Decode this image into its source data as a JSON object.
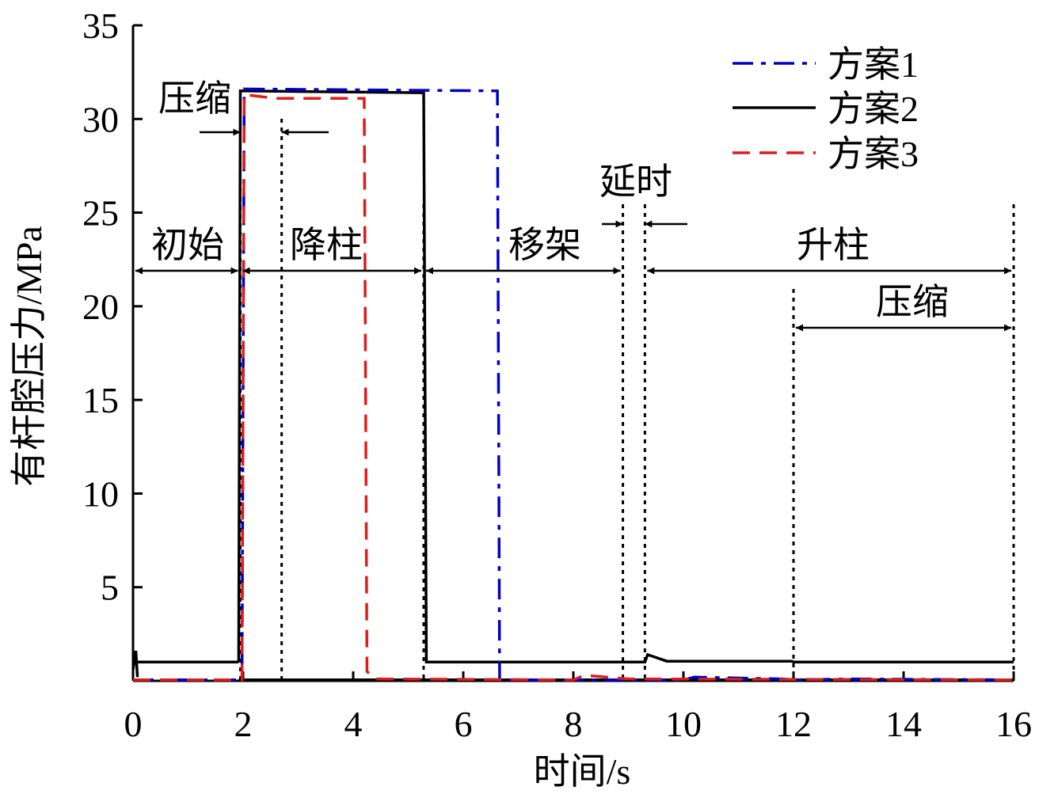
{
  "chart_data": {
    "type": "line",
    "xlabel": "时间/s",
    "ylabel": "有杆腔压力/MPa",
    "xlim": [
      0,
      16
    ],
    "ylim": [
      0,
      35
    ],
    "xticks": [
      0,
      2,
      4,
      6,
      8,
      10,
      12,
      14,
      16
    ],
    "yticks": [
      5,
      10,
      15,
      20,
      25,
      30,
      35
    ],
    "grid": false,
    "legend": "top-right",
    "series": [
      {
        "name": "方案1",
        "color": "#0000cc",
        "dash": "dashdot",
        "points": [
          [
            0,
            0.05
          ],
          [
            1.98,
            0.05
          ],
          [
            2.02,
            31.6
          ],
          [
            6.62,
            31.5
          ],
          [
            6.66,
            0.05
          ],
          [
            10.0,
            0.05
          ],
          [
            10.2,
            0.2
          ],
          [
            11.8,
            0.1
          ],
          [
            12.0,
            0.05
          ],
          [
            13.0,
            0.1
          ],
          [
            16,
            0.05
          ]
        ]
      },
      {
        "name": "方案2",
        "color": "#000000",
        "dash": "solid",
        "points": [
          [
            0,
            1.0
          ],
          [
            1.9,
            1.0
          ],
          [
            1.95,
            0.05
          ],
          [
            5.3,
            0.05
          ],
          [
            5.3,
            0.0
          ],
          [
            0,
            0.0
          ]
        ],
        "points_upper": [
          [
            1.95,
            31.5
          ],
          [
            5.28,
            31.4
          ],
          [
            5.33,
            1.0
          ],
          [
            9.3,
            1.0
          ],
          [
            9.4,
            1.3
          ],
          [
            9.7,
            1.05
          ],
          [
            11.97,
            1.05
          ],
          [
            12.0,
            1.0
          ],
          [
            16,
            1.0
          ]
        ],
        "points_lower": [
          [
            1.95,
            0.05
          ],
          [
            9.3,
            0.05
          ],
          [
            11.97,
            0.05
          ],
          [
            12.0,
            0.05
          ],
          [
            16,
            0.05
          ]
        ]
      },
      {
        "name": "方案3",
        "color": "#e01b1b",
        "dash": "dashed",
        "points": [
          [
            0,
            0.05
          ],
          [
            1.98,
            0.05
          ],
          [
            2.02,
            31.3
          ],
          [
            2.6,
            31.1
          ],
          [
            4.2,
            31.1
          ],
          [
            4.25,
            0.5
          ],
          [
            4.4,
            0.1
          ],
          [
            8.0,
            0.05
          ],
          [
            8.2,
            0.3
          ],
          [
            9.0,
            0.1
          ],
          [
            16,
            0.05
          ]
        ]
      }
    ],
    "phase_markers_x": [
      1.95,
      2.7,
      5.28,
      8.9,
      9.3,
      12.0,
      16.0
    ],
    "annotations": [
      {
        "text": "压缩",
        "x_from": 1.95,
        "x_to": 2.7
      },
      {
        "text": "初始",
        "x_from": 0,
        "x_to": 1.95
      },
      {
        "text": "降柱",
        "x_from": 1.95,
        "x_to": 5.28
      },
      {
        "text": "移架",
        "x_from": 5.28,
        "x_to": 8.9
      },
      {
        "text": "延时",
        "x_from": 8.9,
        "x_to": 9.3
      },
      {
        "text": "升柱",
        "x_from": 9.3,
        "x_to": 16.0
      },
      {
        "text": "压缩",
        "x_from": 12.0,
        "x_to": 16.0
      }
    ]
  }
}
